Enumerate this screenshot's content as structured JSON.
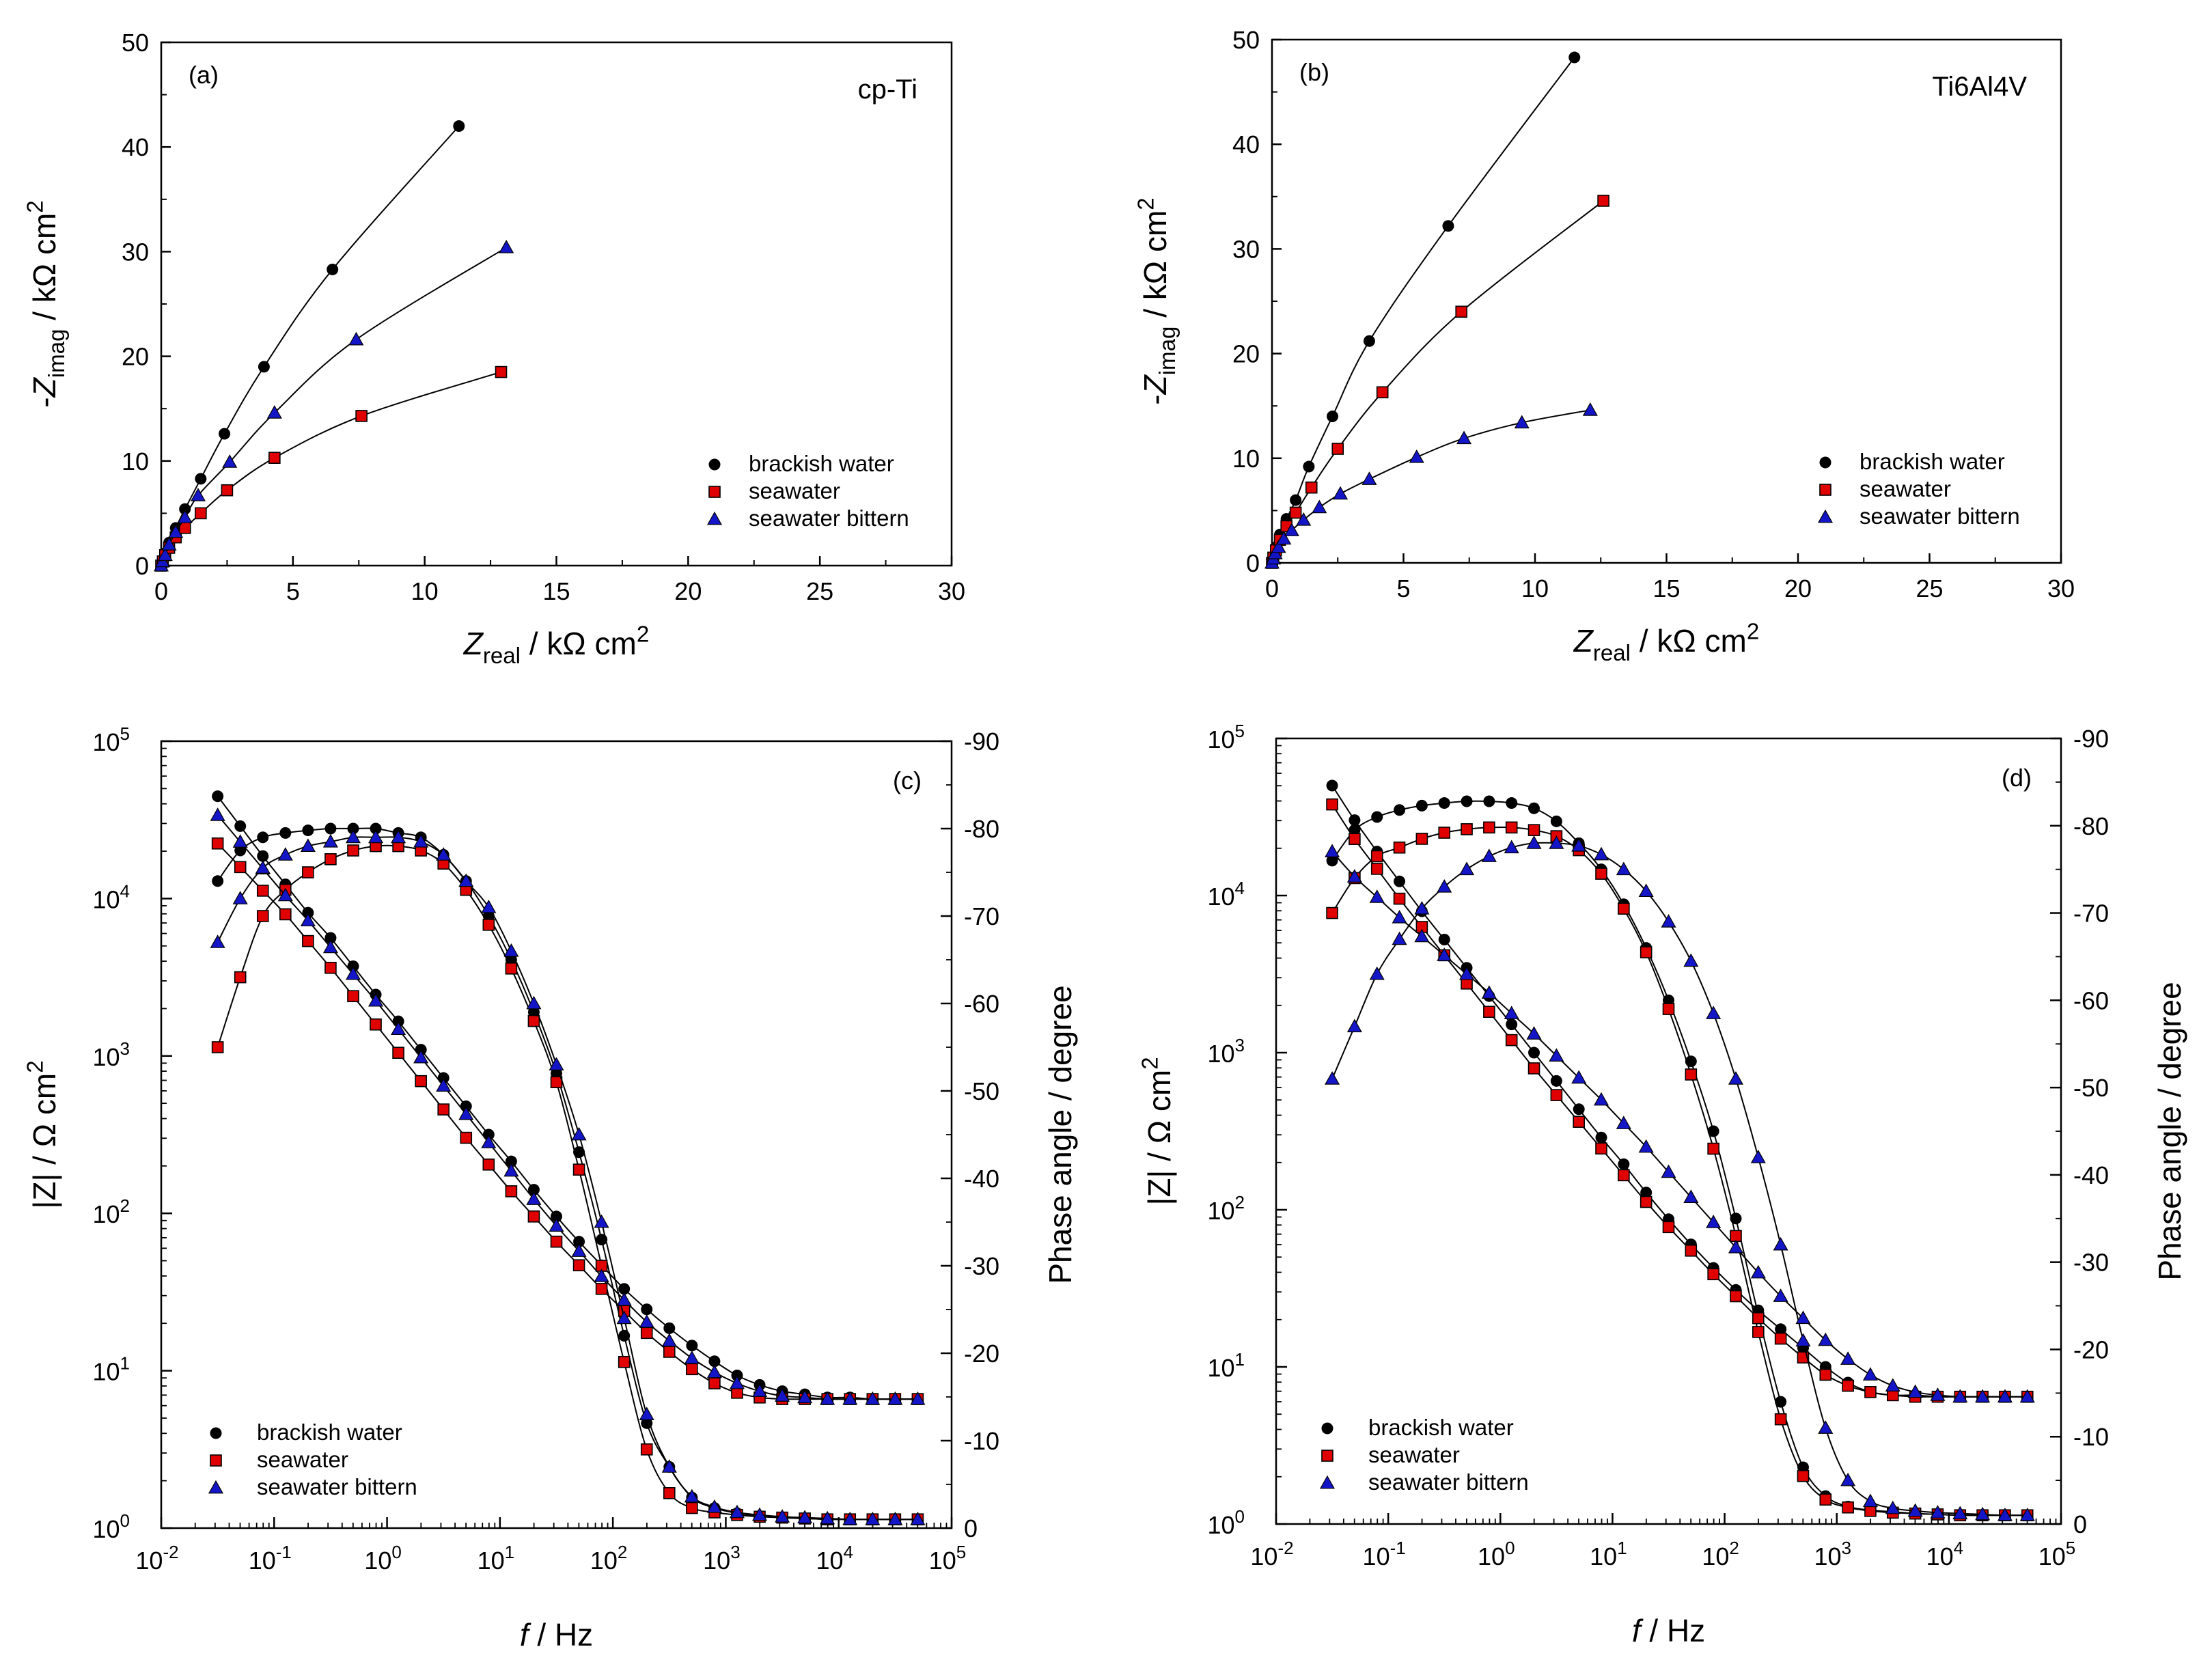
{
  "figure": {
    "colors": {
      "brackish": "#000000",
      "seawater": "#e00000",
      "bittern": "#1515c8"
    },
    "markers": {
      "brackish": "circle",
      "seawater": "square",
      "bittern": "triangle"
    }
  },
  "chart_data": [
    {
      "type": "scatter",
      "panel_label": "(a)",
      "material": "cp-Ti",
      "xlabel": {
        "italic": "Z",
        "sub": "real",
        "rest": " / kΩ cm",
        "sup": "2"
      },
      "ylabel": {
        "pre": "-",
        "italic": "Z",
        "sub": "imag",
        "rest": " / kΩ cm",
        "sup": "2"
      },
      "xlim": [
        0,
        30
      ],
      "ylim": [
        0,
        50
      ],
      "xticks": [
        "0",
        "5",
        "10",
        "15",
        "20",
        "25",
        "30"
      ],
      "yticks": [
        "0",
        "10",
        "20",
        "30",
        "40",
        "50"
      ],
      "legend": [
        "brackish water",
        "seawater",
        "seawater bittern"
      ],
      "series": [
        {
          "name": "brackish water",
          "x": [
            0.0,
            0.05,
            0.15,
            0.3,
            0.55,
            0.9,
            1.5,
            2.4,
            3.9,
            6.5,
            11.3
          ],
          "y": [
            0.0,
            0.5,
            1.2,
            2.2,
            3.6,
            5.4,
            8.3,
            12.6,
            19.0,
            28.3,
            42.0
          ]
        },
        {
          "name": "seawater",
          "x": [
            0.0,
            0.06,
            0.15,
            0.3,
            0.55,
            0.9,
            1.5,
            2.5,
            4.3,
            7.6,
            12.9
          ],
          "y": [
            0.0,
            0.4,
            1.0,
            1.7,
            2.7,
            3.6,
            5.0,
            7.2,
            10.3,
            14.3,
            18.5
          ]
        },
        {
          "name": "seawater bittern",
          "x": [
            0.0,
            0.05,
            0.15,
            0.3,
            0.55,
            0.9,
            1.4,
            2.6,
            4.3,
            7.4,
            13.1
          ],
          "y": [
            0.0,
            0.4,
            1.0,
            2.0,
            3.2,
            4.6,
            6.7,
            9.9,
            14.6,
            21.6,
            30.4
          ]
        }
      ]
    },
    {
      "type": "scatter",
      "panel_label": "(b)",
      "material": "Ti6Al4V",
      "xlabel": {
        "italic": "Z",
        "sub": "real",
        "rest": " / kΩ cm",
        "sup": "2"
      },
      "ylabel": {
        "pre": "-",
        "italic": "Z",
        "sub": "imag",
        "rest": " / kΩ cm",
        "sup": "2"
      },
      "xlim": [
        0,
        30
      ],
      "ylim": [
        0,
        50
      ],
      "xticks": [
        "0",
        "5",
        "10",
        "15",
        "20",
        "25",
        "30"
      ],
      "yticks": [
        "0",
        "10",
        "20",
        "30",
        "40",
        "50"
      ],
      "legend": [
        "brackish water",
        "seawater",
        "seawater bittern"
      ],
      "series": [
        {
          "name": "brackish water",
          "x": [
            0.0,
            0.05,
            0.15,
            0.3,
            0.55,
            0.9,
            1.4,
            2.3,
            3.7,
            6.7,
            11.5
          ],
          "y": [
            0.0,
            0.6,
            1.5,
            2.7,
            4.2,
            6.0,
            9.2,
            14.0,
            21.2,
            32.2,
            48.3
          ]
        },
        {
          "name": "seawater",
          "x": [
            0.0,
            0.05,
            0.15,
            0.3,
            0.55,
            0.9,
            1.5,
            2.5,
            4.2,
            7.2,
            12.6
          ],
          "y": [
            0.0,
            0.5,
            1.2,
            2.2,
            3.5,
            4.8,
            7.2,
            10.9,
            16.3,
            24.0,
            34.6
          ]
        },
        {
          "name": "seawater bittern",
          "x": [
            0.0,
            0.05,
            0.12,
            0.25,
            0.45,
            0.75,
            1.2,
            1.8,
            2.6,
            3.7,
            5.5,
            7.3,
            9.5,
            12.1
          ],
          "y": [
            0.0,
            0.4,
            0.9,
            1.5,
            2.3,
            3.1,
            4.1,
            5.3,
            6.6,
            8.0,
            10.1,
            11.9,
            13.4,
            14.6
          ]
        }
      ]
    },
    {
      "type": "bode",
      "panel_label": "(c)",
      "xlabel": {
        "italic": "f",
        "rest": " / Hz"
      },
      "ylabel": {
        "pre": "|Z| / Ω cm",
        "sup": "2"
      },
      "y2label": "Phase angle / degree",
      "xlim_log10": [
        -2,
        5
      ],
      "ylim_log10": [
        0,
        5
      ],
      "y2lim": [
        0,
        -90
      ],
      "xtick_exponents": [
        "-2",
        "-1",
        "0",
        "1",
        "2",
        "3",
        "4",
        "5"
      ],
      "ytick_exponents": [
        "0",
        "1",
        "2",
        "3",
        "4",
        "5"
      ],
      "y2ticks": [
        "0",
        "-10",
        "-20",
        "-30",
        "-40",
        "-50",
        "-60",
        "-70",
        "-80",
        "-90"
      ],
      "legend": [
        "brackish water",
        "seawater",
        "seawater bittern"
      ],
      "freq_log10": [
        -1.5,
        -1.3,
        -1.1,
        -0.9,
        -0.7,
        -0.5,
        -0.3,
        -0.1,
        0.1,
        0.3,
        0.5,
        0.7,
        0.9,
        1.1,
        1.3,
        1.5,
        1.7,
        1.9,
        2.1,
        2.3,
        2.5,
        2.7,
        2.9,
        3.1,
        3.3,
        3.5,
        3.7,
        3.9,
        4.1,
        4.3,
        4.5,
        4.7
      ],
      "series": [
        {
          "name": "brackish water",
          "z_log10": [
            4.65,
            4.46,
            4.27,
            4.09,
            3.91,
            3.75,
            3.57,
            3.39,
            3.22,
            3.04,
            2.86,
            2.68,
            2.5,
            2.33,
            2.15,
            1.98,
            1.82,
            1.67,
            1.52,
            1.39,
            1.27,
            1.16,
            1.06,
            0.97,
            0.91,
            0.87,
            0.85,
            0.83,
            0.83,
            0.82,
            0.82,
            0.82
          ],
          "phase": [
            -74,
            -77.5,
            -79,
            -79.5,
            -79.8,
            -80,
            -80,
            -80,
            -79.5,
            -79,
            -77,
            -74,
            -70,
            -65,
            -59,
            -52,
            -43,
            -33,
            -22,
            -12,
            -7,
            -3.5,
            -2.3,
            -1.7,
            -1.4,
            -1.2,
            -1.1,
            -1,
            -1,
            -1,
            -1,
            -1
          ]
        },
        {
          "name": "seawater",
          "z_log10": [
            4.35,
            4.2,
            4.05,
            3.9,
            3.73,
            3.56,
            3.38,
            3.2,
            3.02,
            2.84,
            2.66,
            2.48,
            2.31,
            2.14,
            1.98,
            1.82,
            1.67,
            1.52,
            1.38,
            1.24,
            1.12,
            1.01,
            0.92,
            0.86,
            0.83,
            0.82,
            0.82,
            0.82,
            0.82,
            0.82,
            0.82,
            0.82
          ],
          "phase": [
            -55,
            -63,
            -70,
            -73,
            -75,
            -76.5,
            -77.5,
            -78,
            -78,
            -77.5,
            -76,
            -73,
            -69,
            -64,
            -58,
            -51,
            -41,
            -30,
            -19,
            -9,
            -4,
            -2.3,
            -1.8,
            -1.5,
            -1.3,
            -1.2,
            -1.1,
            -1,
            -1,
            -1,
            -1,
            -1
          ]
        },
        {
          "name": "seawater bittern",
          "z_log10": [
            4.53,
            4.36,
            4.19,
            4.02,
            3.86,
            3.69,
            3.52,
            3.35,
            3.17,
            2.99,
            2.81,
            2.63,
            2.45,
            2.27,
            2.09,
            1.92,
            1.76,
            1.6,
            1.45,
            1.31,
            1.19,
            1.08,
            0.99,
            0.92,
            0.87,
            0.84,
            0.83,
            0.82,
            0.82,
            0.82,
            0.82,
            0.82
          ],
          "phase": [
            -67,
            -72,
            -75.5,
            -77,
            -78,
            -78.5,
            -79,
            -79,
            -79,
            -78.5,
            -77,
            -74,
            -71,
            -66,
            -60,
            -53,
            -45,
            -35,
            -24,
            -13,
            -7,
            -3.6,
            -2.4,
            -1.8,
            -1.5,
            -1.3,
            -1.2,
            -1.1,
            -1,
            -1,
            -1,
            -1
          ]
        }
      ]
    },
    {
      "type": "bode",
      "panel_label": "(d)",
      "xlabel": {
        "italic": "f",
        "rest": " / Hz"
      },
      "ylabel": {
        "pre": "|Z| / Ω cm",
        "sup": "2"
      },
      "y2label": "Phase angle / degree",
      "xlim_log10": [
        -2,
        5
      ],
      "ylim_log10": [
        0,
        5
      ],
      "y2lim": [
        0,
        -90
      ],
      "xtick_exponents": [
        "-2",
        "-1",
        "0",
        "1",
        "2",
        "3",
        "4",
        "5"
      ],
      "ytick_exponents": [
        "0",
        "1",
        "2",
        "3",
        "4",
        "5"
      ],
      "y2ticks": [
        "0",
        "-10",
        "-20",
        "-30",
        "-40",
        "-50",
        "-60",
        "-70",
        "-80",
        "-90"
      ],
      "legend": [
        "brackish water",
        "seawater",
        "seawater bittern"
      ],
      "freq_log10": [
        -1.5,
        -1.3,
        -1.1,
        -0.9,
        -0.7,
        -0.5,
        -0.3,
        -0.1,
        0.1,
        0.3,
        0.5,
        0.7,
        0.9,
        1.1,
        1.3,
        1.5,
        1.7,
        1.9,
        2.1,
        2.3,
        2.5,
        2.7,
        2.9,
        3.1,
        3.3,
        3.5,
        3.7,
        3.9,
        4.1,
        4.3,
        4.5,
        4.7
      ],
      "series": [
        {
          "name": "brackish water",
          "z_log10": [
            4.7,
            4.48,
            4.28,
            4.09,
            3.9,
            3.72,
            3.54,
            3.36,
            3.18,
            3.0,
            2.82,
            2.64,
            2.46,
            2.29,
            2.11,
            1.94,
            1.78,
            1.63,
            1.49,
            1.36,
            1.24,
            1.12,
            1.0,
            0.9,
            0.84,
            0.82,
            0.82,
            0.81,
            0.81,
            0.81,
            0.81,
            0.81
          ],
          "phase": [
            -76,
            -79.5,
            -81,
            -81.8,
            -82.3,
            -82.6,
            -82.8,
            -82.8,
            -82.6,
            -82,
            -80.5,
            -78,
            -75,
            -71,
            -66,
            -60,
            -53,
            -45,
            -35,
            -24,
            -14,
            -6.5,
            -3.2,
            -2,
            -1.6,
            -1.4,
            -1.2,
            -1.1,
            -1,
            -1,
            -1,
            -1
          ]
        },
        {
          "name": "seawater",
          "z_log10": [
            4.58,
            4.36,
            4.17,
            3.98,
            3.8,
            3.62,
            3.44,
            3.26,
            3.08,
            2.9,
            2.73,
            2.56,
            2.39,
            2.22,
            2.05,
            1.89,
            1.74,
            1.59,
            1.45,
            1.31,
            1.18,
            1.06,
            0.95,
            0.88,
            0.84,
            0.82,
            0.81,
            0.81,
            0.81,
            0.81,
            0.81,
            0.81
          ],
          "phase": [
            -70,
            -74,
            -76.5,
            -77.5,
            -78.5,
            -79.2,
            -79.6,
            -79.8,
            -79.8,
            -79.5,
            -78.8,
            -77.2,
            -74.5,
            -70.5,
            -65.5,
            -59,
            -51.5,
            -43,
            -33,
            -22,
            -12,
            -5.5,
            -2.8,
            -1.9,
            -1.5,
            -1.3,
            -1.2,
            -1.1,
            -1,
            -1,
            -1,
            -1
          ]
        },
        {
          "name": "seawater bittern",
          "z_log10": [
            4.28,
            4.12,
            3.99,
            3.86,
            3.74,
            3.62,
            3.5,
            3.38,
            3.25,
            3.12,
            2.98,
            2.84,
            2.7,
            2.55,
            2.4,
            2.24,
            2.08,
            1.92,
            1.76,
            1.6,
            1.45,
            1.31,
            1.17,
            1.05,
            0.95,
            0.88,
            0.84,
            0.82,
            0.81,
            0.81,
            0.81,
            0.81
          ],
          "phase": [
            -51,
            -57,
            -63,
            -67,
            -70.5,
            -73,
            -75,
            -76.5,
            -77.5,
            -78,
            -78,
            -77.7,
            -76.7,
            -75,
            -72.5,
            -69,
            -64.5,
            -58.5,
            -51,
            -42,
            -32,
            -21,
            -11,
            -5,
            -2.6,
            -1.8,
            -1.5,
            -1.3,
            -1.2,
            -1.1,
            -1,
            -1
          ]
        }
      ]
    }
  ]
}
